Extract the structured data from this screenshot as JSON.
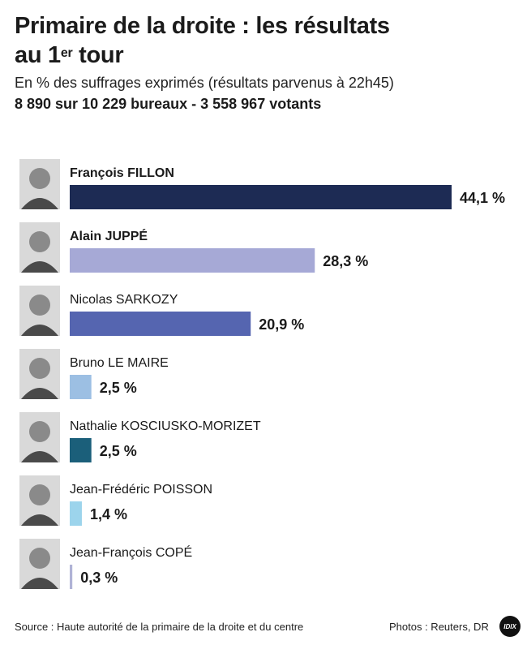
{
  "header": {
    "title_main": "Primaire de la droite : les résultats",
    "title_line2_prefix": "au 1",
    "title_sup": "er",
    "title_line2_suffix": " tour",
    "subtitle": "En % des suffrages exprimés (résultats parvenus à 22h45)",
    "subtitle_bold": "8 890 sur 10 229 bureaux - 3 558 967 votants"
  },
  "chart_data": {
    "type": "bar",
    "orientation": "horizontal",
    "categories": [
      "François FILLON",
      "Alain JUPPÉ",
      "Nicolas SARKOZY",
      "Bruno LE MAIRE",
      "Nathalie KOSCIUSKO-MORIZET",
      "Jean-Frédéric POISSON",
      "Jean-François COPÉ"
    ],
    "values": [
      44.1,
      28.3,
      20.9,
      2.5,
      2.5,
      1.4,
      0.3
    ],
    "value_labels": [
      "44,1 %",
      "28,3 %",
      "20,9 %",
      "2,5 %",
      "2,5 %",
      "1,4 %",
      "0,3 %"
    ],
    "colors": [
      "#1d2b54",
      "#a6a9d6",
      "#5565b0",
      "#9cbfe3",
      "#1b5f7a",
      "#9cd4ec",
      "#b0b3d6"
    ],
    "bold_names": [
      true,
      true,
      false,
      false,
      false,
      false,
      false
    ],
    "xlim": [
      0,
      44.1
    ],
    "grid": false,
    "legend": "none"
  },
  "footer": {
    "source": "Source : Haute autorité de la primaire de la droite et du centre",
    "credit": "Photos : Reuters, DR",
    "logo_text": "IDIX"
  }
}
